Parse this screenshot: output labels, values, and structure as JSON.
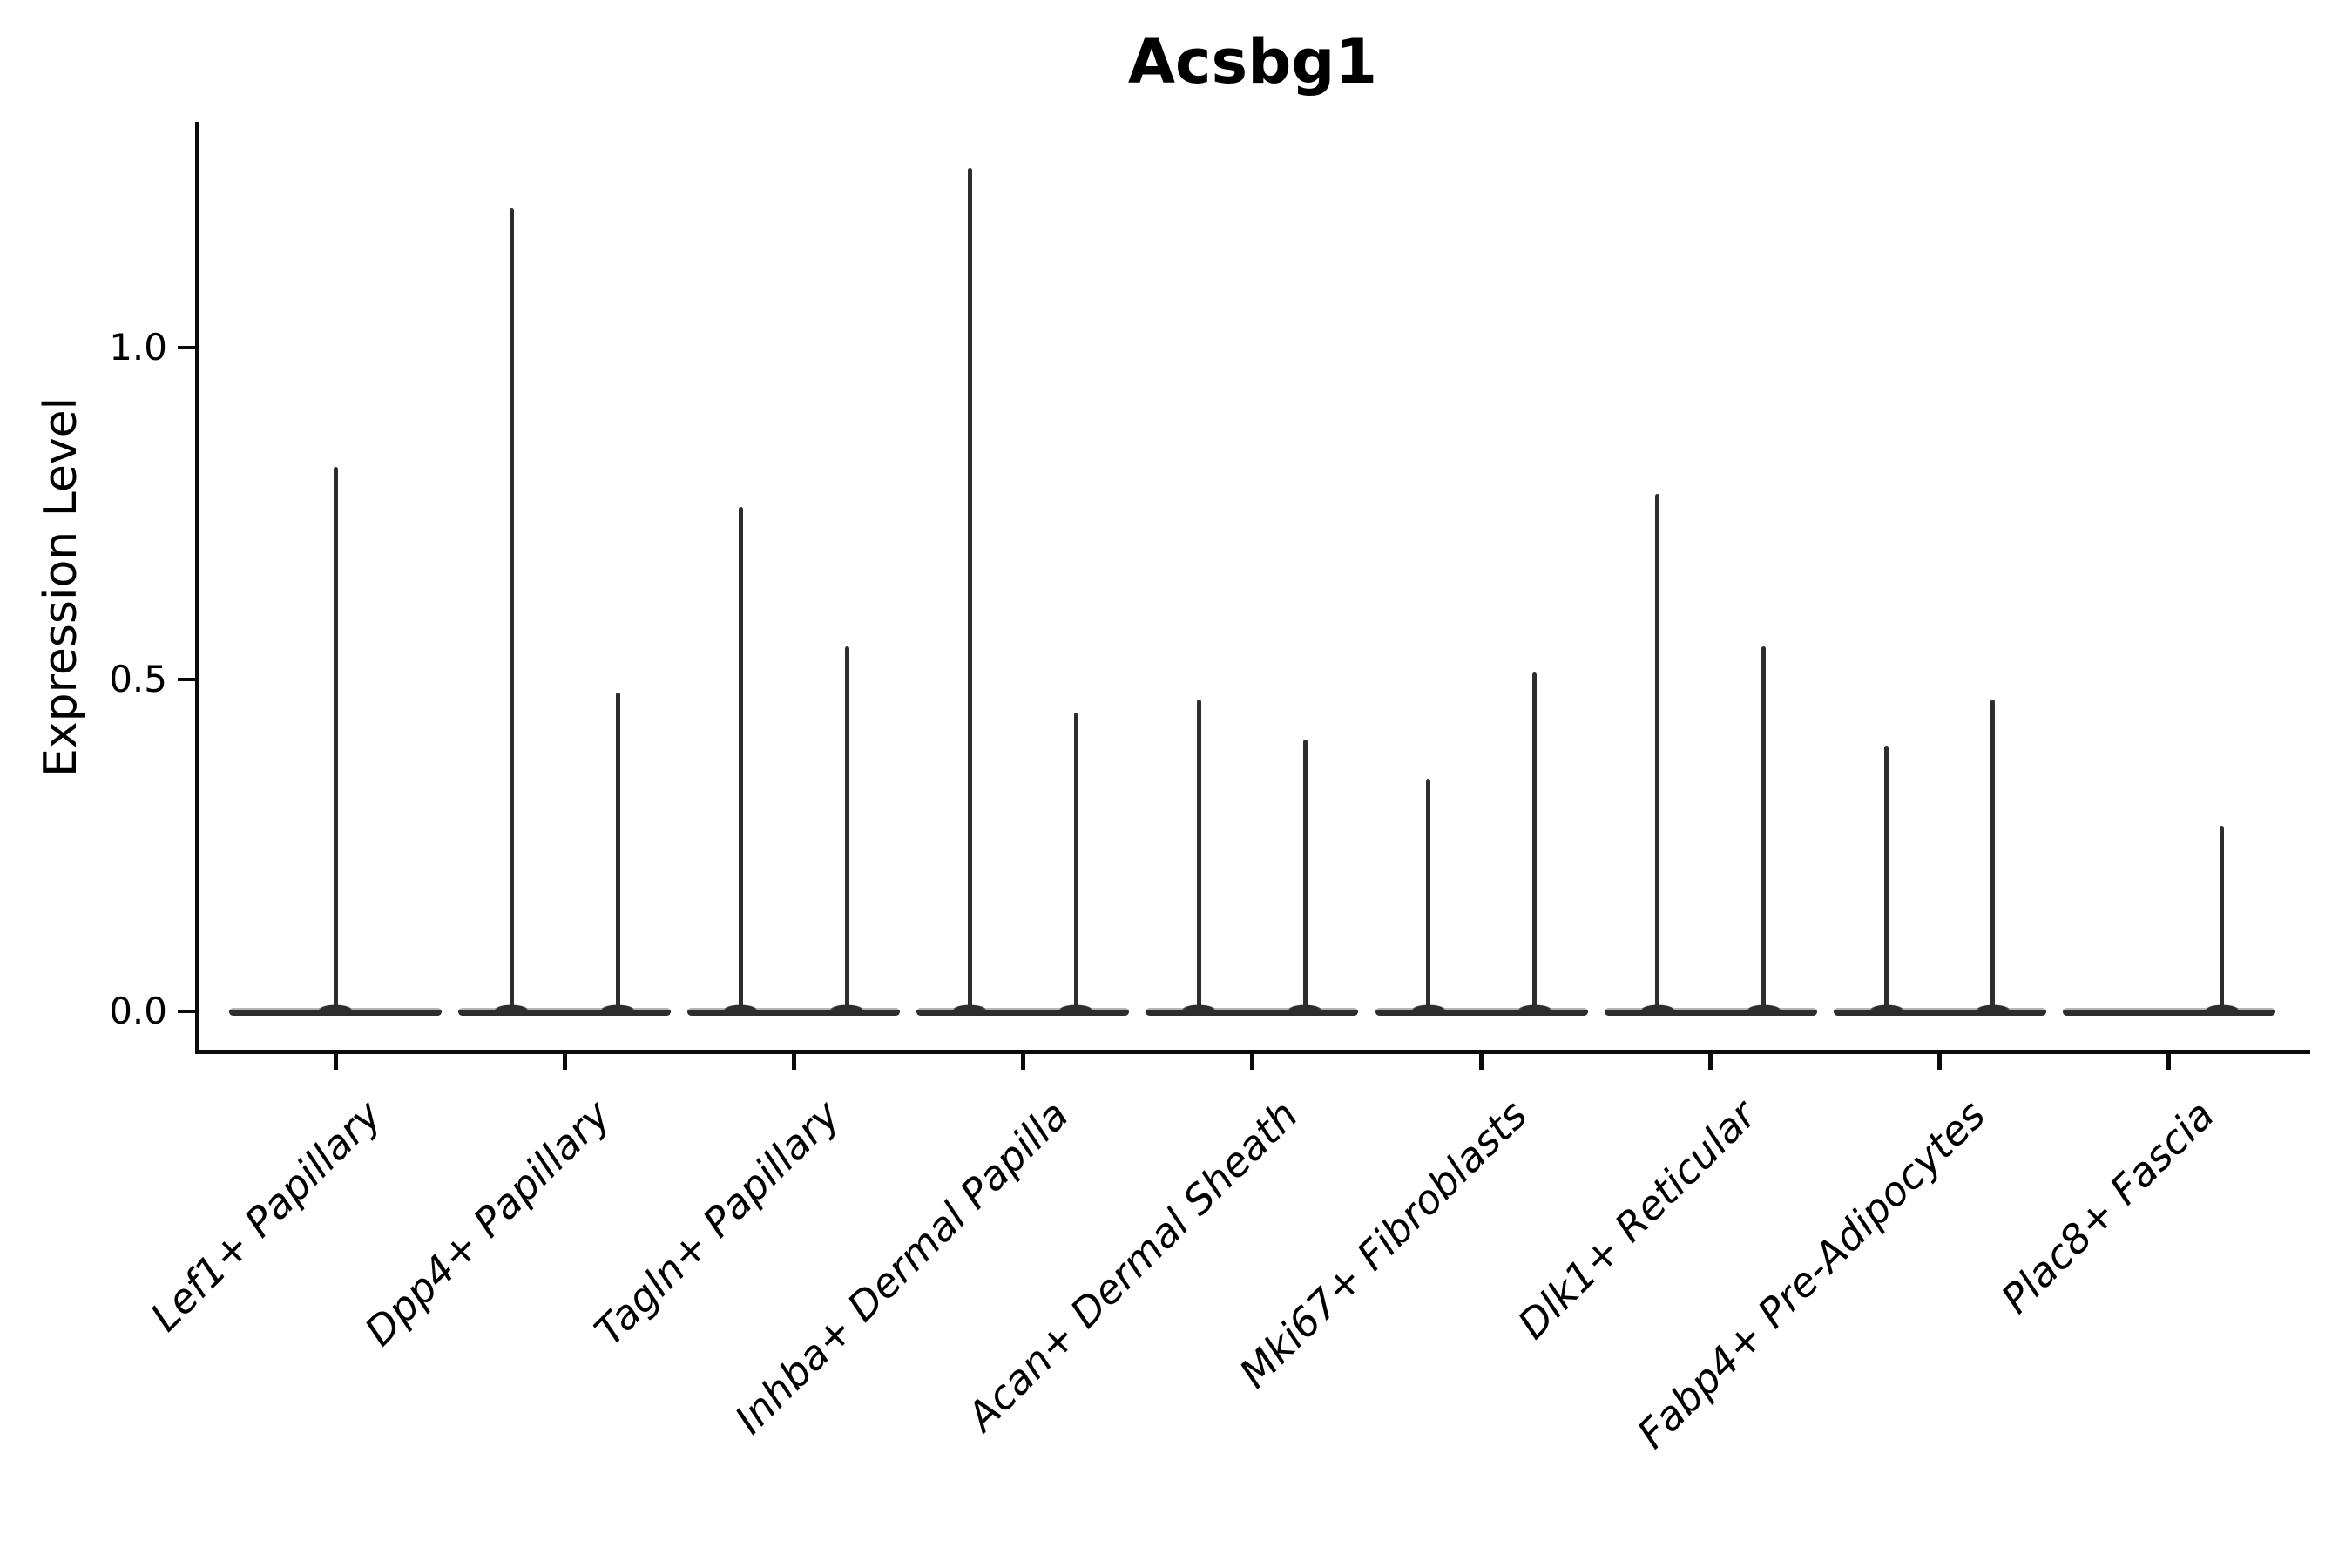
{
  "figure": {
    "title": "Acsbg1",
    "y_axis": {
      "label": "Expression Level",
      "tick_labels": [
        "0.0",
        "0.5",
        "1.0"
      ]
    }
  },
  "chart_data": {
    "type": "violin",
    "title": "Acsbg1",
    "xlabel": "",
    "ylabel": "Expression Level",
    "ylim": [
      -0.06,
      1.34
    ],
    "yticks": [
      {
        "value": 0.0,
        "label": "0.0"
      },
      {
        "value": 0.5,
        "label": "0.5"
      },
      {
        "value": 1.0,
        "label": "1.0"
      }
    ],
    "grid": false,
    "legend": "none",
    "categories": [
      "Lef1+ Papillary",
      "Dpp4+ Papillary",
      "Tagln+ Papillary",
      "Inhba+ Dermal Papilla",
      "Acan+ Dermal Sheath",
      "Mki67+ Fibroblasts",
      "Dlk1+ Reticular",
      "Fabp4+ Pre-Adipocytes",
      "Plac8+ Fascia"
    ],
    "violins": [
      {
        "category": "Lef1+ Papillary",
        "spikes": [
          {
            "position": "center",
            "max": 0.82
          }
        ]
      },
      {
        "category": "Dpp4+ Papillary",
        "spikes": [
          {
            "position": "left",
            "max": 1.21
          },
          {
            "position": "right",
            "max": 0.48
          }
        ]
      },
      {
        "category": "Tagln+ Papillary",
        "spikes": [
          {
            "position": "left",
            "max": 0.76
          },
          {
            "position": "right",
            "max": 0.55
          }
        ]
      },
      {
        "category": "Inhba+ Dermal Papilla",
        "spikes": [
          {
            "position": "left",
            "max": 1.27
          },
          {
            "position": "right",
            "max": 0.45
          }
        ]
      },
      {
        "category": "Acan+ Dermal Sheath",
        "spikes": [
          {
            "position": "left",
            "max": 0.47
          },
          {
            "position": "right",
            "max": 0.41
          }
        ]
      },
      {
        "category": "Mki67+ Fibroblasts",
        "spikes": [
          {
            "position": "left",
            "max": 0.35
          },
          {
            "position": "right",
            "max": 0.51
          }
        ]
      },
      {
        "category": "Dlk1+ Reticular",
        "spikes": [
          {
            "position": "left",
            "max": 0.78
          },
          {
            "position": "right",
            "max": 0.55
          }
        ]
      },
      {
        "category": "Fabp4+ Pre-Adipocytes",
        "spikes": [
          {
            "position": "left",
            "max": 0.4
          },
          {
            "position": "right",
            "max": 0.47
          }
        ]
      },
      {
        "category": "Plac8+ Fascia",
        "spikes": [
          {
            "position": "right",
            "max": 0.28
          }
        ]
      }
    ],
    "colors": {
      "violin": "#2d2d2d",
      "violin_highlight": "#b5b5b5",
      "axis": "#0a0a0a",
      "text": "#000000",
      "background": "#ffffff"
    }
  }
}
